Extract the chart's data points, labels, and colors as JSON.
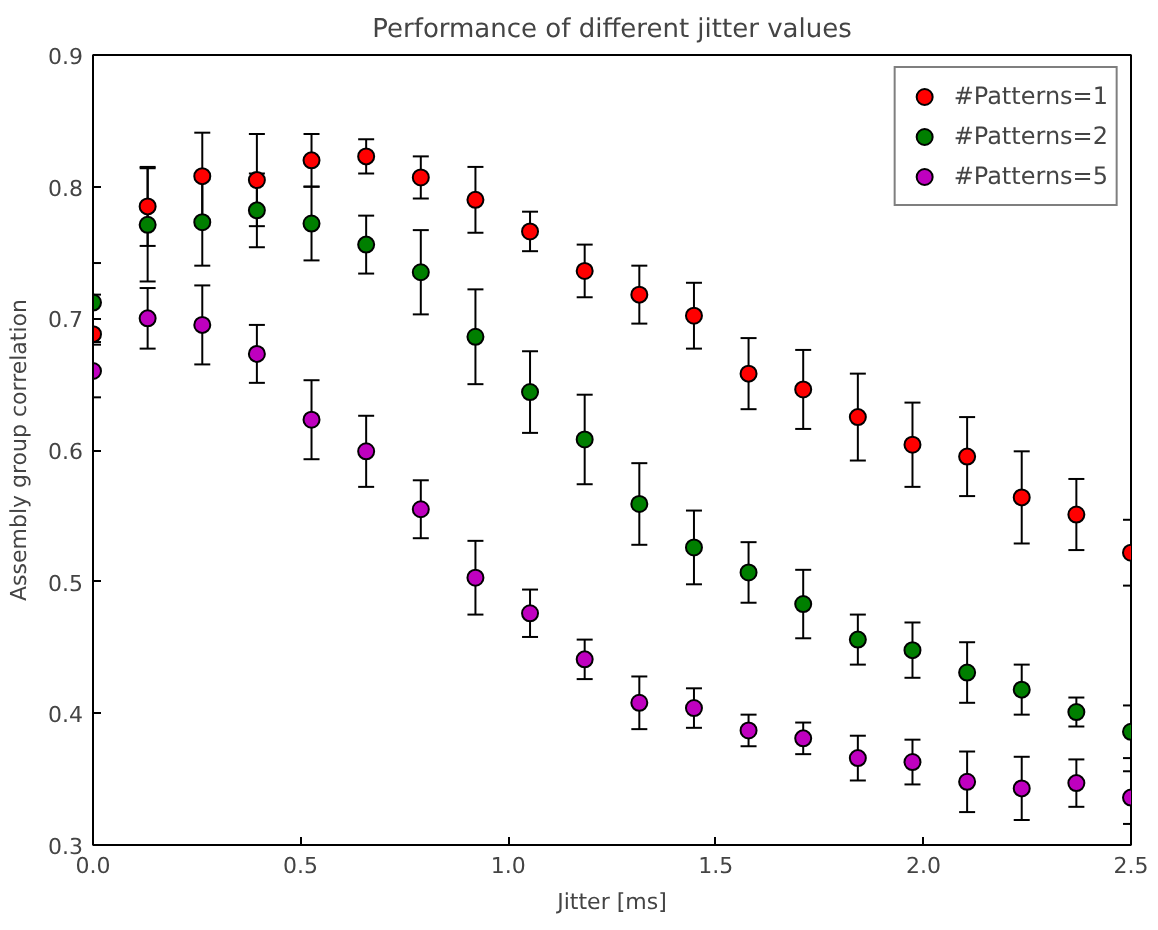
{
  "chart_data": {
    "type": "scatter",
    "title": "Performance of different jitter values",
    "xlabel": "Jitter [ms]",
    "ylabel": "Assembly group correlation",
    "x": [
      0,
      0.1316,
      0.2632,
      0.3947,
      0.5263,
      0.6579,
      0.7895,
      0.9211,
      1.0526,
      1.1842,
      1.3158,
      1.4474,
      1.5789,
      1.7105,
      1.8421,
      1.9737,
      2.1053,
      2.2368,
      2.3684,
      2.5
    ],
    "series": [
      {
        "name": "#Patterns=1",
        "color": "#ff0000",
        "values": [
          0.688,
          0.785,
          0.808,
          0.805,
          0.82,
          0.823,
          0.807,
          0.79,
          0.766,
          0.736,
          0.718,
          0.702,
          0.658,
          0.646,
          0.625,
          0.604,
          0.595,
          0.564,
          0.551,
          0.522
        ],
        "errors": [
          0.03,
          0.03,
          0.033,
          0.035,
          0.02,
          0.013,
          0.016,
          0.025,
          0.015,
          0.02,
          0.022,
          0.025,
          0.027,
          0.03,
          0.033,
          0.032,
          0.03,
          0.035,
          0.027,
          0.025
        ]
      },
      {
        "name": "#Patterns=2",
        "color": "#007f00",
        "values": [
          0.712,
          0.771,
          0.773,
          0.782,
          0.772,
          0.756,
          0.735,
          0.686,
          0.644,
          0.608,
          0.559,
          0.526,
          0.507,
          0.483,
          0.456,
          0.448,
          0.431,
          0.418,
          0.401,
          0.386
        ],
        "errors": [
          0.03,
          0.043,
          0.033,
          0.028,
          0.028,
          0.022,
          0.032,
          0.036,
          0.031,
          0.034,
          0.031,
          0.028,
          0.023,
          0.026,
          0.019,
          0.021,
          0.023,
          0.019,
          0.011,
          0.02
        ]
      },
      {
        "name": "#Patterns=5",
        "color": "#bf00bf",
        "values": [
          0.66,
          0.7,
          0.695,
          0.673,
          0.623,
          0.599,
          0.555,
          0.503,
          0.476,
          0.441,
          0.408,
          0.404,
          0.387,
          0.381,
          0.366,
          0.363,
          0.348,
          0.343,
          0.347,
          0.336
        ],
        "errors": [
          0.02,
          0.023,
          0.03,
          0.022,
          0.03,
          0.027,
          0.022,
          0.028,
          0.018,
          0.015,
          0.02,
          0.015,
          0.012,
          0.012,
          0.017,
          0.017,
          0.023,
          0.024,
          0.018,
          0.02
        ]
      }
    ],
    "xlim": [
      0,
      2.5
    ],
    "ylim": [
      0.3,
      0.9
    ],
    "xticks": [
      {
        "value": 0,
        "label": "0.0"
      },
      0.5,
      {
        "value": 1,
        "label": "1.0"
      },
      1.5,
      {
        "value": 2,
        "label": "2.0"
      },
      2.5
    ],
    "yticks": [
      0.3,
      0.4,
      0.5,
      0.6,
      0.7,
      0.8,
      0.9
    ],
    "grid": false,
    "legend": "top right",
    "marker": "circle"
  }
}
